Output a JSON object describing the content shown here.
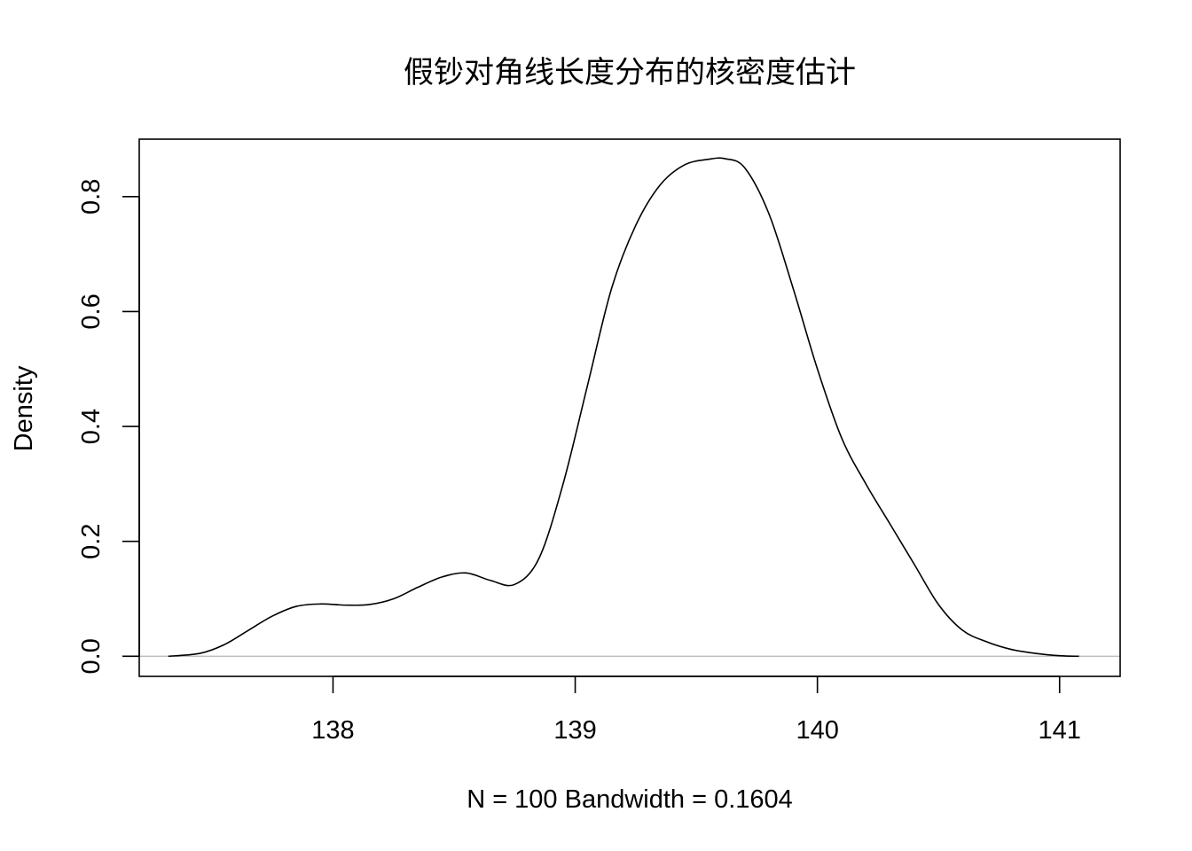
{
  "chart_data": {
    "type": "line",
    "title": "假钞对角线长度分布的核密度估计",
    "xlabel": "N = 100   Bandwidth = 0.1604",
    "ylabel": "Density",
    "xlim": [
      137.2,
      141.25
    ],
    "ylim": [
      -0.035,
      0.9
    ],
    "xticks": [
      138,
      139,
      140,
      141
    ],
    "xtick_labels": [
      "138",
      "139",
      "140",
      "141"
    ],
    "yticks": [
      0.0,
      0.2,
      0.4,
      0.6,
      0.8
    ],
    "ytick_labels": [
      "0.0",
      "0.2",
      "0.4",
      "0.6",
      "0.8"
    ],
    "grid": false,
    "zero_reference_line": true,
    "series": [
      {
        "x": [
          137.32,
          137.45,
          137.55,
          137.65,
          137.75,
          137.85,
          137.95,
          138.05,
          138.15,
          138.25,
          138.35,
          138.45,
          138.55,
          138.65,
          138.75,
          138.85,
          138.95,
          139.05,
          139.15,
          139.25,
          139.35,
          139.45,
          139.55,
          139.62,
          139.7,
          139.8,
          139.9,
          140.0,
          140.1,
          140.2,
          140.3,
          140.4,
          140.5,
          140.6,
          140.7,
          140.8,
          140.9,
          141.0,
          141.08
        ],
        "y": [
          0.0,
          0.005,
          0.02,
          0.045,
          0.07,
          0.087,
          0.091,
          0.089,
          0.09,
          0.1,
          0.12,
          0.138,
          0.145,
          0.132,
          0.125,
          0.17,
          0.3,
          0.47,
          0.64,
          0.75,
          0.82,
          0.855,
          0.865,
          0.866,
          0.85,
          0.77,
          0.64,
          0.5,
          0.38,
          0.3,
          0.23,
          0.16,
          0.09,
          0.045,
          0.025,
          0.012,
          0.005,
          0.001,
          0.0
        ]
      }
    ]
  }
}
